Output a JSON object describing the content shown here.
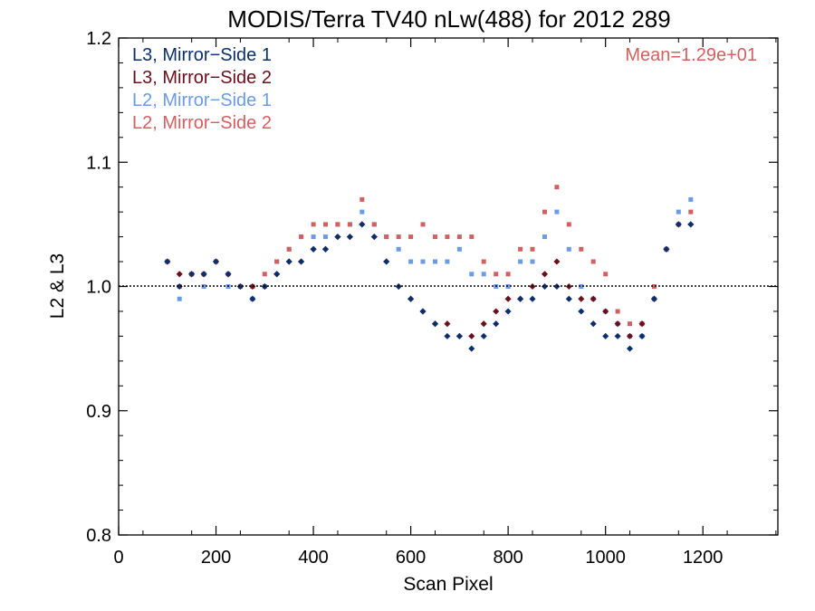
{
  "chart_data": {
    "type": "scatter",
    "title": "MODIS/Terra TV40 nLw(488) for 2012 289",
    "xlabel": "Scan Pixel",
    "ylabel": "L2 & L3",
    "xlim": [
      0,
      1354
    ],
    "ylim": [
      0.8,
      1.2
    ],
    "x_ticks": [
      "0",
      "200",
      "400",
      "600",
      "800",
      "1000",
      "1200"
    ],
    "y_ticks": [
      "0.8",
      "0.9",
      "1.0",
      "1.1",
      "1.2"
    ],
    "annotation": "Mean=1.29e+01",
    "reference_line_y": 1.0,
    "legend_position": "top-left",
    "x_start": 100,
    "x_step": 25,
    "series": [
      {
        "name": "L3, Mirror−Side 1",
        "color": "#0c2f6b",
        "values": [
          1.02,
          1.0,
          1.01,
          1.01,
          1.02,
          1.01,
          1.0,
          0.99,
          1.0,
          1.01,
          1.02,
          1.02,
          1.03,
          1.03,
          1.04,
          1.04,
          1.05,
          1.04,
          1.02,
          1.0,
          0.99,
          0.98,
          0.97,
          0.96,
          0.96,
          0.95,
          0.96,
          0.97,
          0.98,
          0.99,
          0.99,
          1.0,
          1.0,
          0.99,
          0.98,
          0.97,
          0.96,
          0.96,
          0.95,
          0.96,
          0.99,
          1.03,
          1.05,
          1.05
        ]
      },
      {
        "name": "L3, Mirror−Side 2",
        "color": "#6b0f1a",
        "values": [
          1.02,
          1.01,
          1.01,
          1.01,
          1.02,
          1.01,
          1.0,
          1.0,
          1.0,
          1.01,
          1.02,
          1.02,
          1.03,
          1.03,
          1.04,
          1.04,
          1.05,
          1.04,
          1.02,
          1.0,
          0.99,
          0.98,
          0.97,
          0.97,
          0.96,
          0.96,
          0.97,
          0.98,
          0.99,
          0.99,
          1.0,
          1.01,
          1.02,
          1.0,
          0.99,
          0.99,
          0.98,
          0.97,
          0.96,
          0.97,
          0.99,
          1.03,
          1.05,
          1.05
        ]
      },
      {
        "name": "L2, Mirror−Side 1",
        "color": "#6b9be6",
        "values": [
          1.02,
          0.99,
          1.01,
          1.0,
          1.02,
          1.0,
          1.0,
          0.99,
          1.0,
          1.02,
          1.03,
          1.04,
          1.04,
          1.04,
          1.05,
          1.05,
          1.06,
          1.05,
          1.04,
          1.03,
          1.02,
          1.02,
          1.02,
          1.02,
          1.03,
          1.01,
          1.01,
          1.0,
          1.0,
          1.02,
          1.02,
          1.04,
          1.06,
          1.03,
          1.0,
          0.99,
          0.98,
          0.97,
          0.96,
          0.96,
          0.99,
          1.03,
          1.06,
          1.07
        ]
      },
      {
        "name": "L2, Mirror−Side 2",
        "color": "#d36060",
        "values": [
          1.02,
          1.0,
          1.01,
          1.01,
          1.02,
          1.01,
          1.0,
          1.0,
          1.01,
          1.02,
          1.03,
          1.04,
          1.05,
          1.05,
          1.05,
          1.05,
          1.07,
          1.05,
          1.04,
          1.04,
          1.04,
          1.05,
          1.04,
          1.04,
          1.04,
          1.04,
          1.02,
          1.01,
          1.01,
          1.03,
          1.03,
          1.06,
          1.08,
          1.05,
          1.03,
          1.02,
          1.01,
          0.98,
          0.97,
          0.97,
          1.0,
          1.03,
          1.05,
          1.06
        ]
      }
    ]
  }
}
